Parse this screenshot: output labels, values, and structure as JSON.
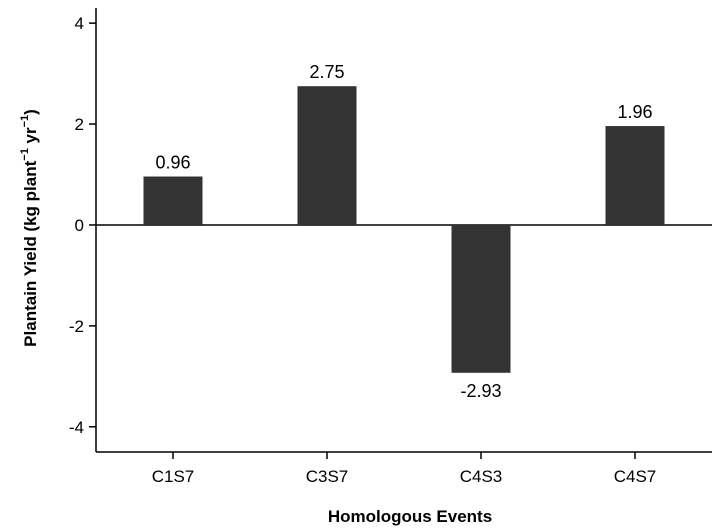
{
  "chart_data": {
    "type": "bar",
    "categories": [
      "C1S7",
      "C3S7",
      "C4S3",
      "C4S7"
    ],
    "values": [
      0.96,
      2.75,
      -2.93,
      1.96
    ],
    "data_labels": [
      "0.96",
      "2.75",
      "-2.93",
      "1.96"
    ],
    "title": "",
    "xlabel": "Homologous Events",
    "ylabel": {
      "prefix": "Plantain Yield (kg plant",
      "sup1": "−1",
      "mid": " yr",
      "sup2": "−1",
      "suffix": ")"
    },
    "ylim": [
      -4.5,
      4.3
    ],
    "yticks": [
      -4,
      -2,
      0,
      2,
      4
    ],
    "ytick_labels": [
      "-4",
      "-2",
      "0",
      "2",
      "4"
    ],
    "grid": false,
    "legend": "none",
    "bar_color": "#333333"
  }
}
